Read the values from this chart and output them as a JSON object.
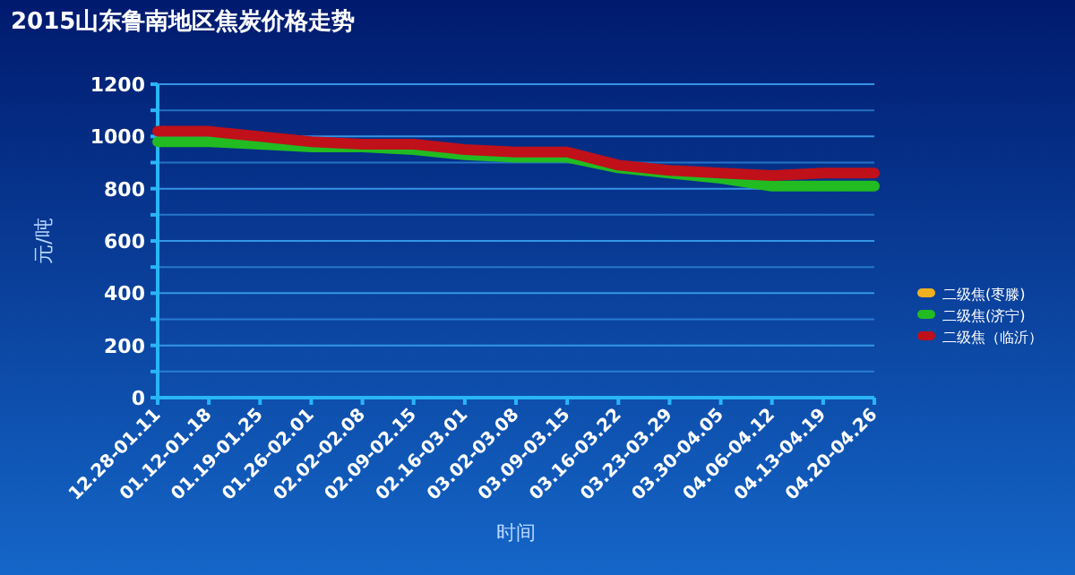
{
  "chart_data": {
    "type": "line",
    "title": "2015山东鲁南地区焦炭价格走势",
    "xlabel": "时间",
    "ylabel": "元/吨",
    "categories": [
      "12.28-01.11",
      "01.12-01.18",
      "01.19-01.25",
      "01.26-02.01",
      "02.02-02.08",
      "02.09-02.15",
      "02.16-03.01",
      "03.02-03.08",
      "03.09-03.15",
      "03.16-03.22",
      "03.23-03.29",
      "03.30-04.05",
      "04.06-04.12",
      "04.13-04.19",
      "04.20-04.26"
    ],
    "series": [
      {
        "name": "二级焦(枣滕)",
        "color": "#f0b020",
        "values": [
          null,
          null,
          null,
          null,
          null,
          null,
          null,
          null,
          null,
          null,
          null,
          null,
          null,
          null,
          null
        ]
      },
      {
        "name": "二级焦(济宁)",
        "color": "#22bb22",
        "values": [
          980,
          980,
          970,
          960,
          960,
          950,
          930,
          920,
          920,
          880,
          860,
          840,
          810,
          810,
          810
        ]
      },
      {
        "name": "二级焦（临沂）",
        "color": "#c0101a",
        "values": [
          1020,
          1020,
          1000,
          980,
          970,
          970,
          950,
          940,
          940,
          890,
          870,
          860,
          850,
          860,
          860
        ]
      }
    ],
    "ylim": [
      0,
      1200
    ],
    "yticks": [
      0,
      {
        "value": 100,
        "label": null
      },
      200,
      {
        "value": 300,
        "label": null
      },
      400,
      {
        "value": 500,
        "label": null
      },
      600,
      {
        "value": 700,
        "label": null
      },
      800,
      {
        "value": 900,
        "label": null
      },
      1000,
      {
        "value": 1100,
        "label": null
      },
      1200
    ],
    "grid": "y",
    "legend": "right",
    "marker": "none",
    "line_style": "solid"
  }
}
